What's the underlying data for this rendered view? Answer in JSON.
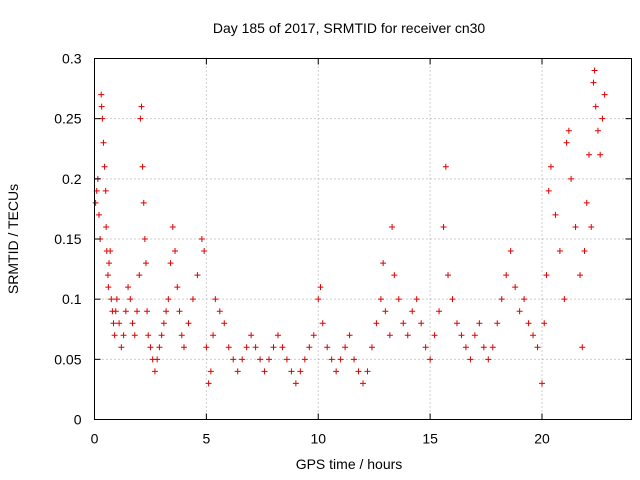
{
  "chart_data": {
    "type": "scatter",
    "title": "Day 185 of 2017, SRMTID for receiver cn30",
    "xlabel": "GPS time / hours",
    "ylabel": "SRMTID / TECUs",
    "xlim": [
      0,
      24
    ],
    "ylim": [
      0,
      0.3
    ],
    "x_ticks": [
      0,
      5,
      10,
      15,
      20
    ],
    "x_tick_labels": [
      "0",
      "5",
      "10",
      "15",
      "20"
    ],
    "y_ticks": [
      0,
      0.05,
      0.1,
      0.15,
      0.2,
      0.25,
      0.3
    ],
    "y_tick_labels": [
      "0",
      "0.05",
      "0.1",
      "0.15",
      "0.2",
      "0.25",
      "0.3"
    ],
    "grid": true,
    "marker": "plus",
    "color": "#e00000",
    "series": [
      {
        "name": "SRMTID",
        "points": [
          [
            0.05,
            0.18
          ],
          [
            0.1,
            0.19
          ],
          [
            0.15,
            0.2
          ],
          [
            0.2,
            0.17
          ],
          [
            0.25,
            0.15
          ],
          [
            0.3,
            0.27
          ],
          [
            0.32,
            0.26
          ],
          [
            0.35,
            0.25
          ],
          [
            0.4,
            0.23
          ],
          [
            0.45,
            0.21
          ],
          [
            0.5,
            0.19
          ],
          [
            0.52,
            0.16
          ],
          [
            0.55,
            0.14
          ],
          [
            0.6,
            0.12
          ],
          [
            0.62,
            0.11
          ],
          [
            0.65,
            0.13
          ],
          [
            0.7,
            0.14
          ],
          [
            0.75,
            0.1
          ],
          [
            0.8,
            0.09
          ],
          [
            0.85,
            0.08
          ],
          [
            0.9,
            0.07
          ],
          [
            0.95,
            0.09
          ],
          [
            1.0,
            0.1
          ],
          [
            1.1,
            0.08
          ],
          [
            1.2,
            0.06
          ],
          [
            1.3,
            0.07
          ],
          [
            1.4,
            0.09
          ],
          [
            1.5,
            0.11
          ],
          [
            1.6,
            0.1
          ],
          [
            1.7,
            0.08
          ],
          [
            1.8,
            0.07
          ],
          [
            1.9,
            0.09
          ],
          [
            2.0,
            0.12
          ],
          [
            2.05,
            0.25
          ],
          [
            2.1,
            0.26
          ],
          [
            2.15,
            0.21
          ],
          [
            2.2,
            0.18
          ],
          [
            2.25,
            0.15
          ],
          [
            2.3,
            0.13
          ],
          [
            2.35,
            0.09
          ],
          [
            2.4,
            0.07
          ],
          [
            2.5,
            0.06
          ],
          [
            2.6,
            0.05
          ],
          [
            2.7,
            0.04
          ],
          [
            2.8,
            0.05
          ],
          [
            2.9,
            0.06
          ],
          [
            3.0,
            0.07
          ],
          [
            3.1,
            0.08
          ],
          [
            3.2,
            0.09
          ],
          [
            3.3,
            0.1
          ],
          [
            3.4,
            0.13
          ],
          [
            3.5,
            0.16
          ],
          [
            3.6,
            0.14
          ],
          [
            3.7,
            0.11
          ],
          [
            3.8,
            0.09
          ],
          [
            3.9,
            0.07
          ],
          [
            4.0,
            0.06
          ],
          [
            4.2,
            0.08
          ],
          [
            4.4,
            0.1
          ],
          [
            4.6,
            0.12
          ],
          [
            4.8,
            0.15
          ],
          [
            4.9,
            0.14
          ],
          [
            5.0,
            0.06
          ],
          [
            5.1,
            0.03
          ],
          [
            5.2,
            0.04
          ],
          [
            5.3,
            0.07
          ],
          [
            5.4,
            0.1
          ],
          [
            5.6,
            0.09
          ],
          [
            5.8,
            0.08
          ],
          [
            6.0,
            0.06
          ],
          [
            6.2,
            0.05
          ],
          [
            6.4,
            0.04
          ],
          [
            6.6,
            0.05
          ],
          [
            6.8,
            0.06
          ],
          [
            7.0,
            0.07
          ],
          [
            7.2,
            0.06
          ],
          [
            7.4,
            0.05
          ],
          [
            7.6,
            0.04
          ],
          [
            7.8,
            0.05
          ],
          [
            8.0,
            0.06
          ],
          [
            8.2,
            0.07
          ],
          [
            8.4,
            0.06
          ],
          [
            8.6,
            0.05
          ],
          [
            8.8,
            0.04
          ],
          [
            9.0,
            0.03
          ],
          [
            9.2,
            0.04
          ],
          [
            9.4,
            0.05
          ],
          [
            9.6,
            0.06
          ],
          [
            9.8,
            0.07
          ],
          [
            10.0,
            0.1
          ],
          [
            10.1,
            0.11
          ],
          [
            10.2,
            0.08
          ],
          [
            10.4,
            0.06
          ],
          [
            10.6,
            0.05
          ],
          [
            10.8,
            0.04
          ],
          [
            11.0,
            0.05
          ],
          [
            11.2,
            0.06
          ],
          [
            11.4,
            0.07
          ],
          [
            11.6,
            0.05
          ],
          [
            11.8,
            0.04
          ],
          [
            12.0,
            0.03
          ],
          [
            12.2,
            0.04
          ],
          [
            12.4,
            0.06
          ],
          [
            12.6,
            0.08
          ],
          [
            12.8,
            0.1
          ],
          [
            12.9,
            0.13
          ],
          [
            13.0,
            0.09
          ],
          [
            13.2,
            0.07
          ],
          [
            13.3,
            0.16
          ],
          [
            13.4,
            0.12
          ],
          [
            13.6,
            0.1
          ],
          [
            13.8,
            0.08
          ],
          [
            14.0,
            0.07
          ],
          [
            14.2,
            0.09
          ],
          [
            14.4,
            0.1
          ],
          [
            14.6,
            0.08
          ],
          [
            14.8,
            0.06
          ],
          [
            15.0,
            0.05
          ],
          [
            15.2,
            0.07
          ],
          [
            15.4,
            0.09
          ],
          [
            15.6,
            0.16
          ],
          [
            15.7,
            0.21
          ],
          [
            15.8,
            0.12
          ],
          [
            16.0,
            0.1
          ],
          [
            16.2,
            0.08
          ],
          [
            16.4,
            0.07
          ],
          [
            16.6,
            0.06
          ],
          [
            16.8,
            0.05
          ],
          [
            17.0,
            0.07
          ],
          [
            17.2,
            0.08
          ],
          [
            17.4,
            0.06
          ],
          [
            17.6,
            0.05
          ],
          [
            17.8,
            0.06
          ],
          [
            18.0,
            0.08
          ],
          [
            18.2,
            0.1
          ],
          [
            18.4,
            0.12
          ],
          [
            18.6,
            0.14
          ],
          [
            18.8,
            0.11
          ],
          [
            19.0,
            0.09
          ],
          [
            19.2,
            0.1
          ],
          [
            19.4,
            0.08
          ],
          [
            19.6,
            0.07
          ],
          [
            19.8,
            0.06
          ],
          [
            20.0,
            0.03
          ],
          [
            20.1,
            0.08
          ],
          [
            20.2,
            0.12
          ],
          [
            20.3,
            0.19
          ],
          [
            20.4,
            0.21
          ],
          [
            20.6,
            0.17
          ],
          [
            20.8,
            0.14
          ],
          [
            21.0,
            0.1
          ],
          [
            21.1,
            0.23
          ],
          [
            21.2,
            0.24
          ],
          [
            21.3,
            0.2
          ],
          [
            21.5,
            0.16
          ],
          [
            21.7,
            0.12
          ],
          [
            21.8,
            0.06
          ],
          [
            21.9,
            0.14
          ],
          [
            22.0,
            0.18
          ],
          [
            22.1,
            0.22
          ],
          [
            22.2,
            0.16
          ],
          [
            22.3,
            0.28
          ],
          [
            22.35,
            0.29
          ],
          [
            22.4,
            0.26
          ],
          [
            22.5,
            0.24
          ],
          [
            22.6,
            0.22
          ],
          [
            22.7,
            0.25
          ],
          [
            22.8,
            0.27
          ]
        ]
      }
    ]
  }
}
